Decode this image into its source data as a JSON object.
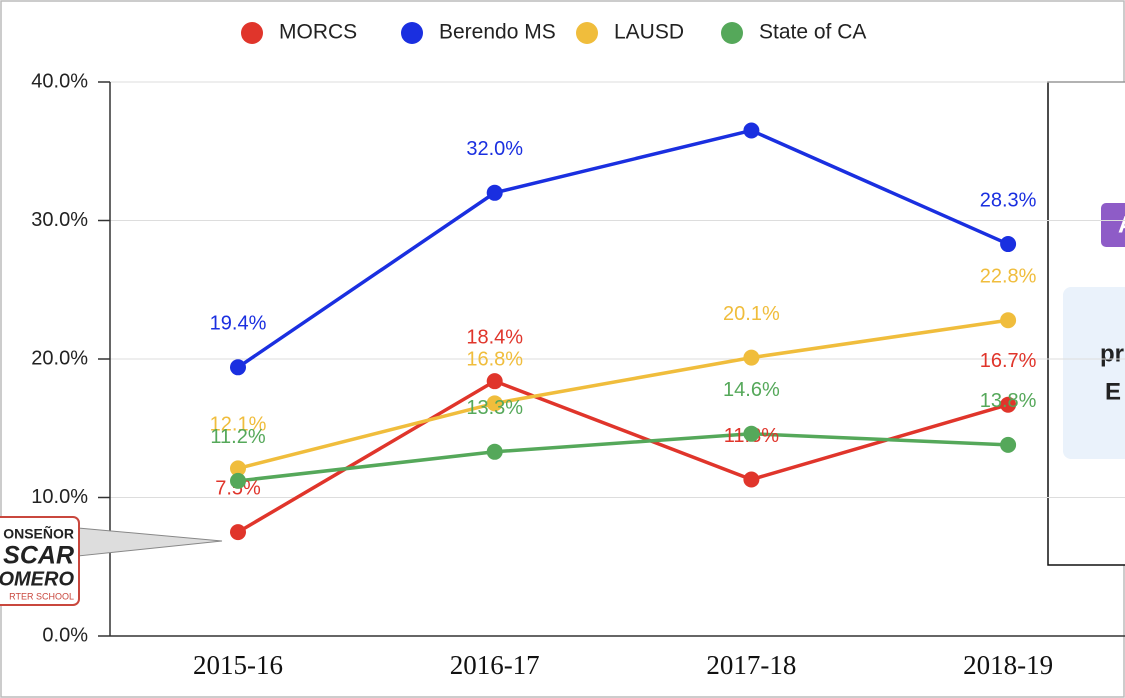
{
  "chart_data": {
    "type": "line",
    "categories": [
      "2015-16",
      "2016-17",
      "2017-18",
      "2018-19"
    ],
    "series": [
      {
        "name": "MORCS",
        "color": "#e0352b",
        "values": [
          7.5,
          18.4,
          11.3,
          16.7
        ],
        "value_labels": [
          "7.5%",
          "18.4%",
          "11.3%",
          "16.7%"
        ]
      },
      {
        "name": "Berendo MS",
        "color": "#1a2fe0",
        "values": [
          19.4,
          32.0,
          36.5,
          28.3
        ],
        "value_labels": [
          "19.4%",
          "32.0%",
          null,
          "28.3%"
        ]
      },
      {
        "name": "LAUSD",
        "color": "#f0bd3c",
        "values": [
          12.1,
          16.8,
          20.1,
          22.8
        ],
        "value_labels": [
          "12.1%",
          "16.8%",
          "20.1%",
          "22.8%"
        ]
      },
      {
        "name": "State of CA",
        "color": "#55a85a",
        "values": [
          11.2,
          13.3,
          14.6,
          13.8
        ],
        "value_labels": [
          "11.2%",
          "13.3%",
          "14.6%",
          "13.8%"
        ]
      }
    ],
    "ylim": [
      0,
      40
    ],
    "yticks": [
      {
        "value": 0,
        "label": "0.0%"
      },
      {
        "value": 10,
        "label": "10.0%"
      },
      {
        "value": 20,
        "label": "20.0%"
      },
      {
        "value": 30,
        "label": "30.0%"
      },
      {
        "value": 40,
        "label": "40.0%"
      }
    ],
    "grid": true,
    "legend": "top"
  },
  "logo": {
    "lines": [
      "ONSEÑOR",
      "SCAR",
      "OMERO",
      "RTER SCHOOL"
    ]
  },
  "side_panel": {
    "badge": "A",
    "lines": [
      "pr",
      "E"
    ]
  }
}
